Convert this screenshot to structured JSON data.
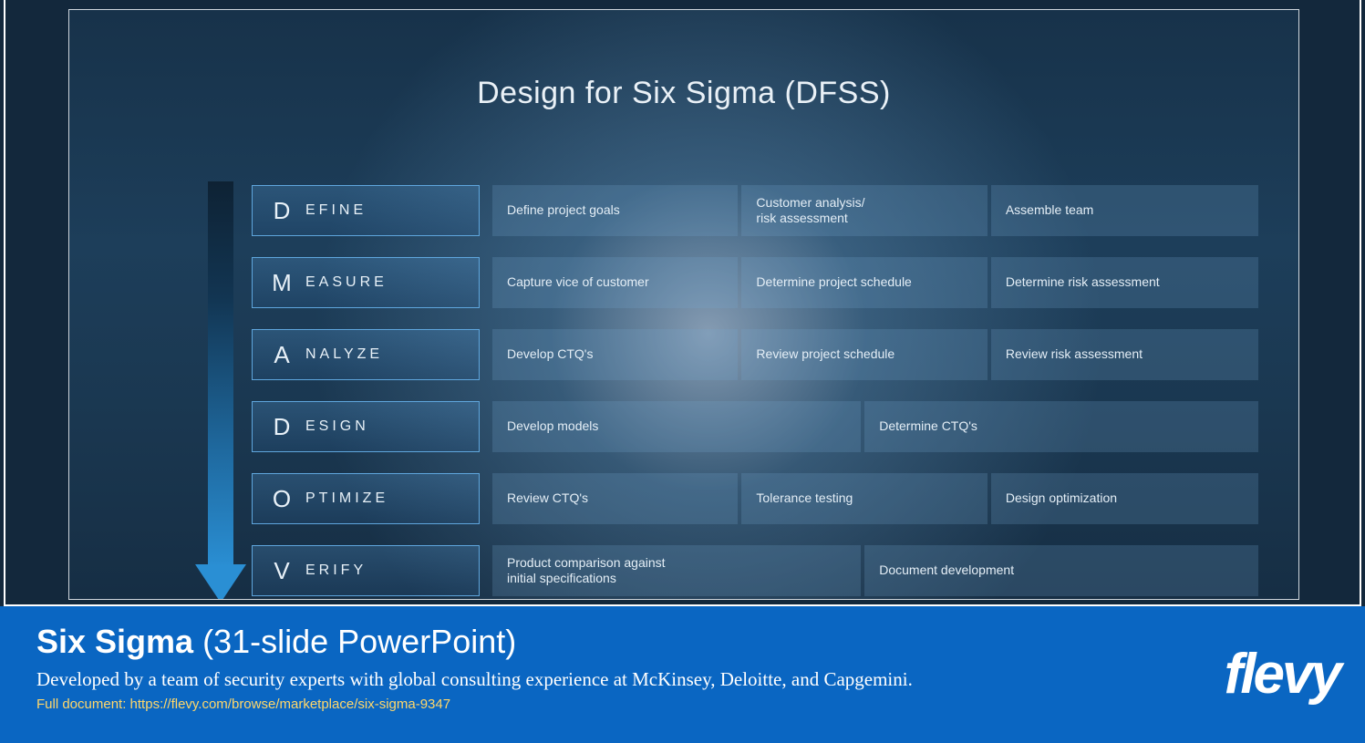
{
  "slide": {
    "title": "Design for Six Sigma (DFSS)",
    "background_gradient": [
      "#17324a",
      "#1d3e5a",
      "#1a3750",
      "#162e44"
    ],
    "glow_center_color": "rgba(220,235,255,0.55)",
    "border_color": "#cfd6dc"
  },
  "arrow": {
    "shaft_gradient": [
      "#0e2234",
      "#123552",
      "#1f6aa0",
      "#2a8fd4"
    ],
    "head_color": "#2a8fd4"
  },
  "phase_box": {
    "border_color": "#5fa6dd",
    "fill_gradient": [
      "rgba(90,160,220,0.25)",
      "rgba(40,90,140,0.25)"
    ],
    "letter_fontsize": 26,
    "rest_fontsize": 16,
    "rest_letter_spacing": 4
  },
  "task_box": {
    "fill": "rgba(120,170,210,0.22)",
    "fontsize": 14
  },
  "rows": [
    {
      "letter": "D",
      "rest": "EFINE",
      "tasks": [
        {
          "label": "Define project goals",
          "flex": 1
        },
        {
          "label": "Customer analysis/\nrisk assessment",
          "flex": 1
        },
        {
          "label": "Assemble team",
          "flex": 1.1
        }
      ]
    },
    {
      "letter": "M",
      "rest": "EASURE",
      "tasks": [
        {
          "label": "Capture vice of customer",
          "flex": 1
        },
        {
          "label": "Determine project schedule",
          "flex": 1
        },
        {
          "label": "Determine risk assessment",
          "flex": 1.1
        }
      ]
    },
    {
      "letter": "A",
      "rest": "NALYZE",
      "tasks": [
        {
          "label": "Develop CTQ's",
          "flex": 1
        },
        {
          "label": "Review project schedule",
          "flex": 1
        },
        {
          "label": "Review risk assessment",
          "flex": 1.1
        }
      ]
    },
    {
      "letter": "D",
      "rest": "ESIGN",
      "tasks": [
        {
          "label": "Develop models",
          "flex": 1.35
        },
        {
          "label": "Determine CTQ's",
          "flex": 1.45
        }
      ]
    },
    {
      "letter": "O",
      "rest": "PTIMIZE",
      "tasks": [
        {
          "label": "Review CTQ's",
          "flex": 1
        },
        {
          "label": "Tolerance testing",
          "flex": 1
        },
        {
          "label": "Design optimization",
          "flex": 1.1
        }
      ]
    },
    {
      "letter": "V",
      "rest": "ERIFY",
      "tasks": [
        {
          "label": "Product comparison against\ninitial specifications",
          "flex": 1.35
        },
        {
          "label": "Document development",
          "flex": 1.45
        }
      ]
    }
  ],
  "footer": {
    "title_bold": "Six Sigma",
    "title_rest": " (31-slide PowerPoint)",
    "subtitle": "Developed by a team of security experts with global consulting experience at McKinsey, Deloitte, and Capgemini.",
    "link_prefix": "Full document: ",
    "link_url": "https://flevy.com/browse/marketplace/six-sigma-9347",
    "logo_text": "flevy",
    "background_color": "#0a66c2",
    "link_color": "#ffd76a"
  }
}
